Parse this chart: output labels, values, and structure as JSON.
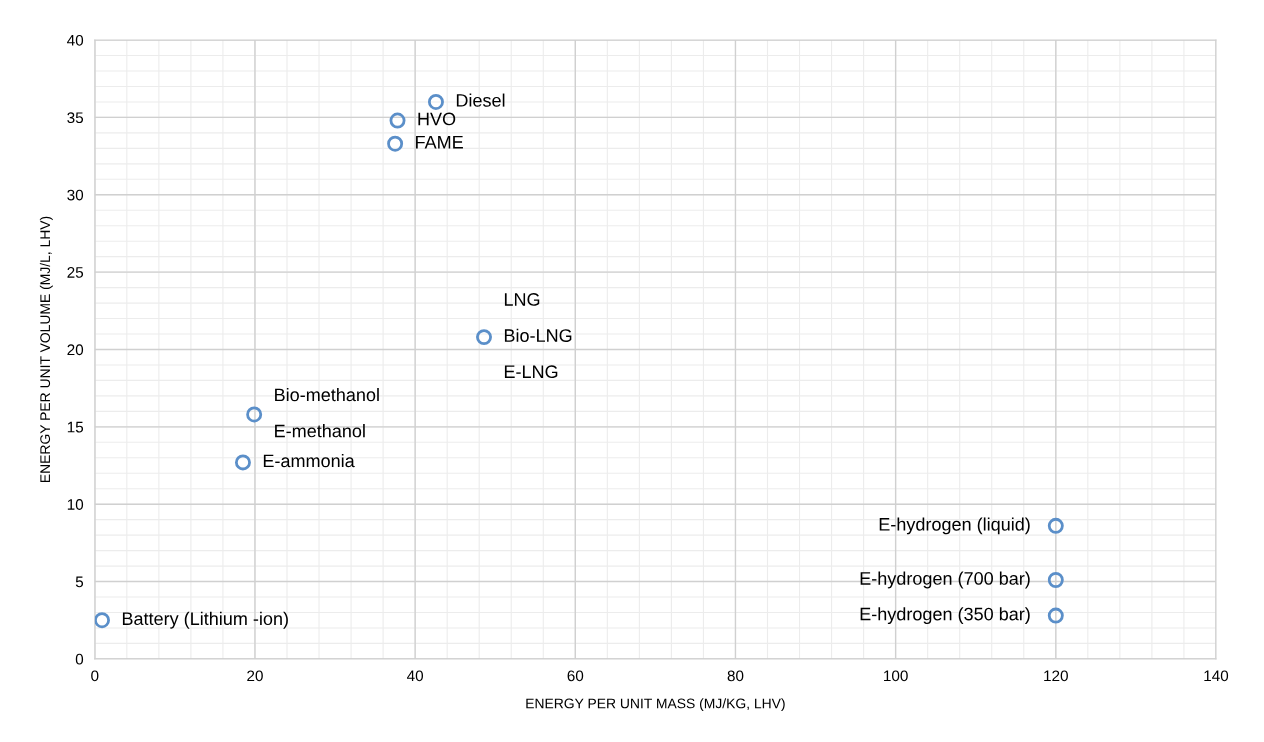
{
  "chart_data": {
    "type": "scatter",
    "xlabel": "ENERGY PER UNIT MASS (MJ/KG, LHV)",
    "ylabel": "ENERGY PER UNIT VOLUME (MJ/L, LHV)",
    "x": [
      42.6,
      37.8,
      37.5,
      48.6,
      19.9,
      18.5,
      0.9,
      120,
      120,
      120
    ],
    "series": [
      {
        "color": "#5b8fc9",
        "values": [
          36,
          34.8,
          33.3,
          20.8,
          15.8,
          12.7,
          2.5,
          8.6,
          5.1,
          2.8
        ]
      }
    ],
    "annotations": [
      {
        "text": "Diesel",
        "x": 42.6,
        "y": 36
      },
      {
        "text": "HVO",
        "x": 37.8,
        "y": 34.8
      },
      {
        "text": "FAME",
        "x": 37.5,
        "y": 33.3
      },
      {
        "text": "LNG",
        "x": 48.6,
        "y": 20.8
      },
      {
        "text": "Bio-LNG",
        "x": 48.6,
        "y": 20.8
      },
      {
        "text": "E-LNG",
        "x": 48.6,
        "y": 20.8
      },
      {
        "text": "Bio-methanol",
        "x": 19.9,
        "y": 15.8
      },
      {
        "text": "E-methanol",
        "x": 19.9,
        "y": 15.8
      },
      {
        "text": "E-ammonia",
        "x": 18.5,
        "y": 12.7
      },
      {
        "text": "Battery (Lithium -ion)",
        "x": 0.9,
        "y": 2.5
      },
      {
        "text": "E-hydrogen (liquid)",
        "x": 120,
        "y": 8.6
      },
      {
        "text": "E-hydrogen (700 bar)",
        "x": 120,
        "y": 5.1
      },
      {
        "text": "E-hydrogen (350 bar)",
        "x": 120,
        "y": 2.8
      }
    ],
    "xlim": [
      0,
      140
    ],
    "xticks": [
      0,
      20,
      40,
      60,
      80,
      100,
      120,
      140
    ],
    "ylim": [
      0,
      40
    ],
    "yticks": [
      0,
      5,
      10,
      15,
      20,
      25,
      30,
      35,
      40
    ],
    "grid": true,
    "marker": "circle"
  }
}
